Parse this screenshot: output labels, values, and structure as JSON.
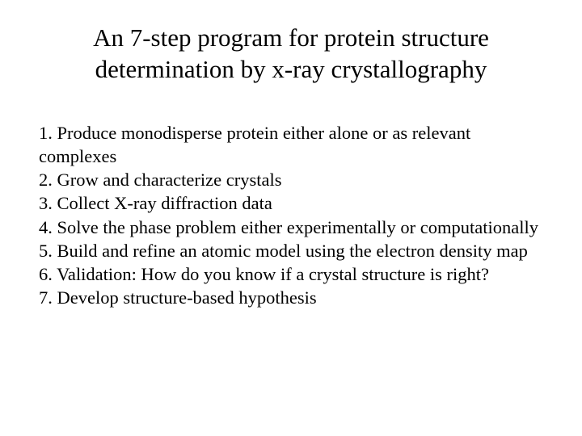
{
  "title": "An 7-step program for protein structure determination by x-ray crystallography",
  "title_fontsize": 31,
  "body_fontsize": 22.5,
  "text_color": "#000000",
  "background_color": "#ffffff",
  "font_family": "Times New Roman",
  "items": [
    "1. Produce monodisperse protein either alone or as relevant complexes",
    "2. Grow and characterize crystals",
    "3. Collect X-ray diffraction data",
    "4. Solve the phase problem either experimentally or computationally",
    "5. Build and refine an atomic model using the electron density map",
    "6. Validation: How do you know if a crystal structure is right?",
    "7. Develop structure-based hypothesis"
  ]
}
